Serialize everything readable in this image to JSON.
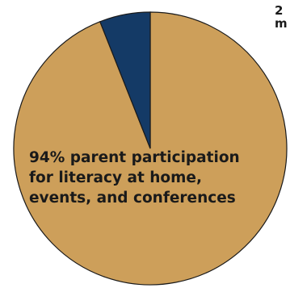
{
  "chart_data": {
    "type": "pie",
    "slices": [
      {
        "label": "parent participation",
        "value": 94,
        "color": "#cd9f5a"
      },
      {
        "label": "",
        "value": 6,
        "color": "#143a66"
      }
    ],
    "annotation_lines": [
      "94% parent participation",
      "for literacy at home,",
      "events, and conferences"
    ],
    "clipped_text": [
      "2",
      "m"
    ],
    "stroke_color": "#1a1a1a"
  }
}
